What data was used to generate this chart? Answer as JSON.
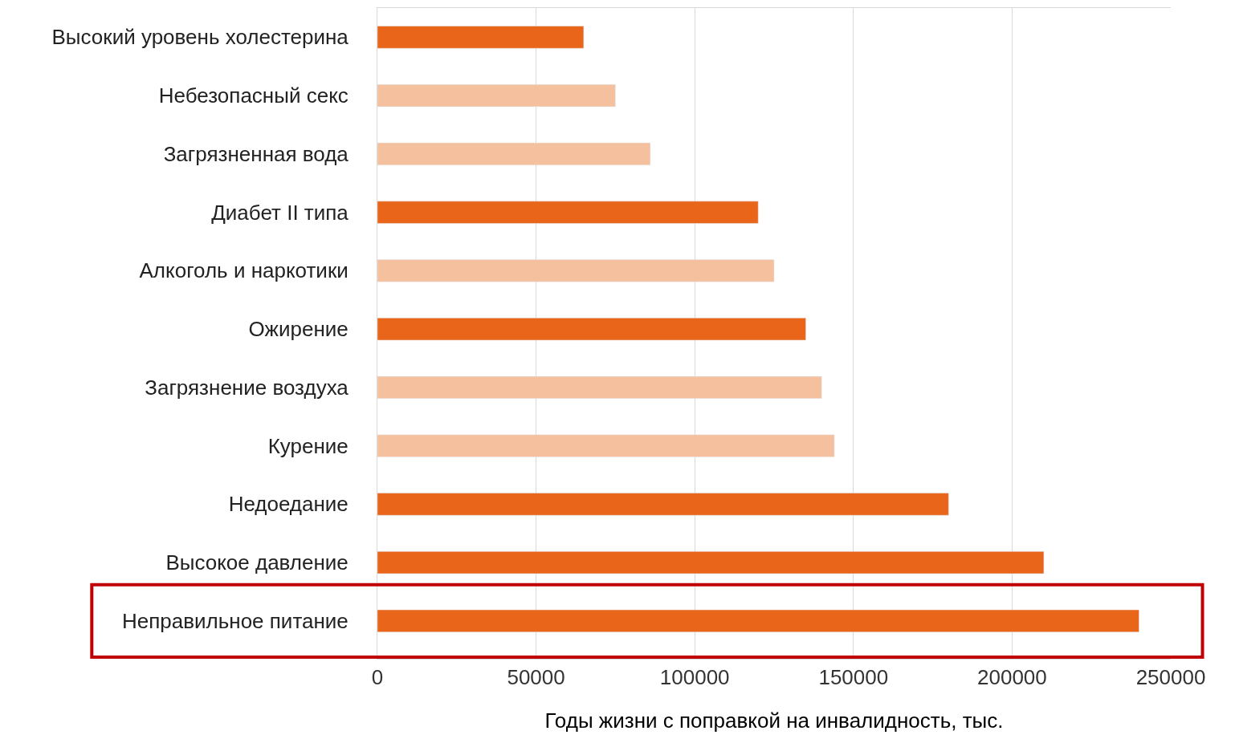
{
  "chart_data": {
    "type": "bar",
    "orientation": "horizontal",
    "xlabel": "Годы жизни с поправкой на инвалидность, тыс.",
    "categories": [
      "Высокий уровень холестерина",
      "Небезопасный секс",
      "Загрязненная вода",
      "Диабет II типа",
      "Алкоголь и наркотики",
      "Ожирение",
      "Загрязнение воздуха",
      "Курение",
      "Недоедание",
      "Высокое давление",
      "Неправильное питание"
    ],
    "values": [
      65000,
      75000,
      86000,
      120000,
      125000,
      135000,
      140000,
      144000,
      180000,
      210000,
      240000
    ],
    "colors": [
      "#e8651a",
      "#f5c09d",
      "#f5c09d",
      "#e8651a",
      "#f5c09d",
      "#e8651a",
      "#f5c09d",
      "#f5c09d",
      "#e8651a",
      "#e8651a",
      "#e8651a"
    ],
    "xlim": [
      0,
      250000
    ],
    "xticks": [
      0,
      50000,
      100000,
      150000,
      200000,
      250000
    ],
    "grid": "x"
  }
}
